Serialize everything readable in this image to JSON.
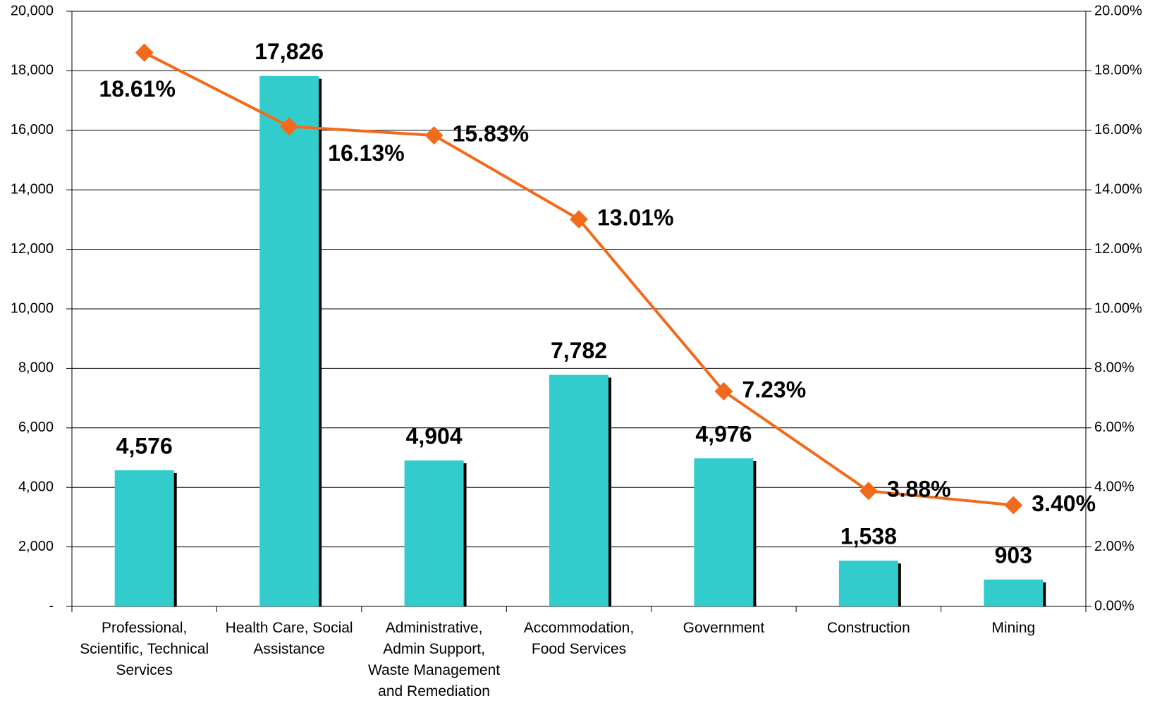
{
  "chart_data": {
    "type": "bar_line",
    "categories": [
      "Professional, Scientific, Technical Services",
      "Health Care, Social Assistance",
      "Administrative, Admin Support, Waste Management and Remediation",
      "Accommodation, Food Services",
      "Government",
      "Construction",
      "Mining"
    ],
    "series": [
      {
        "type": "bar",
        "color": "#33cccc",
        "values": [
          4576,
          17826,
          4904,
          7782,
          4976,
          1538,
          903
        ],
        "value_labels": [
          "4,576",
          "17,826",
          "4,904",
          "7,782",
          "4,976",
          "1,538",
          "903"
        ]
      },
      {
        "type": "line",
        "axis": "y2",
        "color": "#f26a1b",
        "values": [
          18.61,
          16.13,
          15.83,
          13.01,
          7.23,
          3.88,
          3.4
        ],
        "value_labels": [
          "18.61%",
          "16.13%",
          "15.83%",
          "13.01%",
          "7.23%",
          "3.88%",
          "3.40%"
        ]
      }
    ],
    "ylim": [
      0,
      20000
    ],
    "yticks": [
      {
        "value": 0,
        "label": "-"
      },
      {
        "value": 2000,
        "label": "2,000"
      },
      {
        "value": 4000,
        "label": "4,000"
      },
      {
        "value": 6000,
        "label": "6,000"
      },
      {
        "value": 8000,
        "label": "8,000"
      },
      {
        "value": 10000,
        "label": "10,000"
      },
      {
        "value": 12000,
        "label": "12,000"
      },
      {
        "value": 14000,
        "label": "14,000"
      },
      {
        "value": 16000,
        "label": "16,000"
      },
      {
        "value": 18000,
        "label": "18,000"
      },
      {
        "value": 20000,
        "label": "20,000"
      }
    ],
    "y2lim": [
      0,
      20
    ],
    "y2ticks": [
      {
        "value": 0,
        "label": "0.00%"
      },
      {
        "value": 2,
        "label": "2.00%"
      },
      {
        "value": 4,
        "label": "4.00%"
      },
      {
        "value": 6,
        "label": "6.00%"
      },
      {
        "value": 8,
        "label": "8.00%"
      },
      {
        "value": 10,
        "label": "10.00%"
      },
      {
        "value": 12,
        "label": "12.00%"
      },
      {
        "value": 14,
        "label": "14.00%"
      },
      {
        "value": 16,
        "label": "16.00%"
      },
      {
        "value": 18,
        "label": "18.00%"
      },
      {
        "value": 20,
        "label": "20.00%"
      }
    ],
    "grid": true
  }
}
